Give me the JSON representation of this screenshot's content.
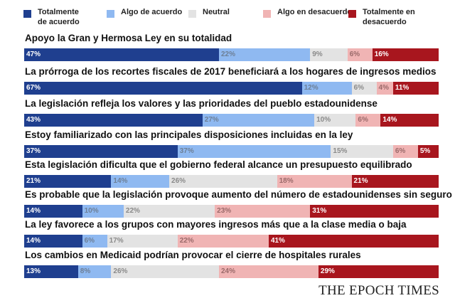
{
  "chart_data": {
    "type": "bar",
    "orientation": "horizontal",
    "stacked": true,
    "legend_position": "top",
    "series": [
      {
        "name": "Totalmente de acuerdo",
        "color": "#1f3f8f",
        "label_color": "#ffffff"
      },
      {
        "name": "Algo de acuerdo",
        "color": "#8fb9f1",
        "label_color": "#6d7f96"
      },
      {
        "name": "Neutral",
        "color": "#e3e3e3",
        "label_color": "#8a8a8a"
      },
      {
        "name": "Algo en desacuerdo",
        "color": "#f0b4b4",
        "label_color": "#9a6a6a"
      },
      {
        "name": "Totalmente en desacuerdo",
        "color": "#a8161e",
        "label_color": "#ffffff"
      }
    ],
    "categories": [
      "Apoyo la Gran y Hermosa Ley en su totalidad",
      "La prórroga de los recortes fiscales de 2017 beneficiará a los hogares de ingresos medios",
      "La legislación refleja los valores y las prioridades del pueblo estadounidense",
      "Estoy familiarizado con las principales disposiciones incluidas en la ley",
      "Esta legislación dificulta que el gobierno federal alcance un presupuesto equilibrado",
      "Es probable que la legislación provoque aumento del número de estadounidenses sin seguro",
      "La ley favorece a los grupos con mayores ingresos más que a la clase media o baja",
      "Los cambios en Medicaid podrían provocar el cierre de hospitales rurales"
    ],
    "values": [
      [
        47,
        22,
        9,
        6,
        16
      ],
      [
        67,
        12,
        6,
        4,
        11
      ],
      [
        43,
        27,
        10,
        6,
        14
      ],
      [
        37,
        37,
        15,
        6,
        5
      ],
      [
        21,
        14,
        26,
        18,
        21
      ],
      [
        14,
        10,
        22,
        23,
        31
      ],
      [
        14,
        6,
        17,
        22,
        41
      ],
      [
        13,
        8,
        26,
        24,
        29
      ]
    ],
    "unit": "%"
  },
  "legend": {
    "labels": [
      "Totalmente\nde acuerdo",
      "Algo de acuerdo",
      "Neutral",
      "Algo en desacuerdo",
      "Totalmente en\ndesacuerdo"
    ]
  },
  "logo": {
    "text": "THE EPOCH TIMES"
  }
}
